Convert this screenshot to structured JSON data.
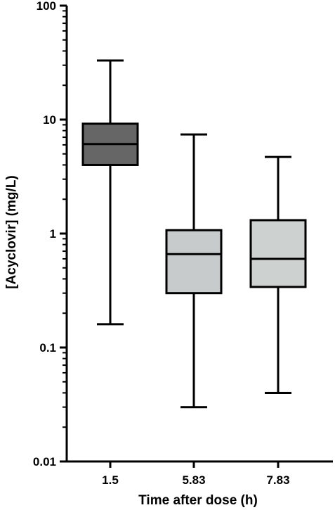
{
  "chart_data": {
    "type": "box",
    "title": "",
    "xlabel": "Time after dose (h)",
    "ylabel": "[Acyclovir] (mg/L)",
    "yscale": "log",
    "ylim": [
      0.01,
      100
    ],
    "yticks": [
      {
        "value": 0.01,
        "label": "0.01"
      },
      {
        "value": 0.1,
        "label": "0.1"
      },
      {
        "value": 1,
        "label": "1"
      },
      {
        "value": 10,
        "label": "10"
      },
      {
        "value": 100,
        "label": "100"
      }
    ],
    "grid": false,
    "legend": "none",
    "categories": [
      "1.5",
      "5.83",
      "7.83"
    ],
    "boxes": [
      {
        "category": "1.5",
        "min": 0.16,
        "q1": 4.0,
        "median": 6.1,
        "q3": 9.2,
        "max": 33,
        "color": "#666666"
      },
      {
        "category": "5.83",
        "min": 0.03,
        "q1": 0.3,
        "median": 0.66,
        "q3": 1.07,
        "max": 7.4,
        "color": "#c8cbcc"
      },
      {
        "category": "7.83",
        "min": 0.04,
        "q1": 0.34,
        "median": 0.6,
        "q3": 1.31,
        "max": 4.7,
        "color": "#cdd2d1"
      }
    ]
  }
}
